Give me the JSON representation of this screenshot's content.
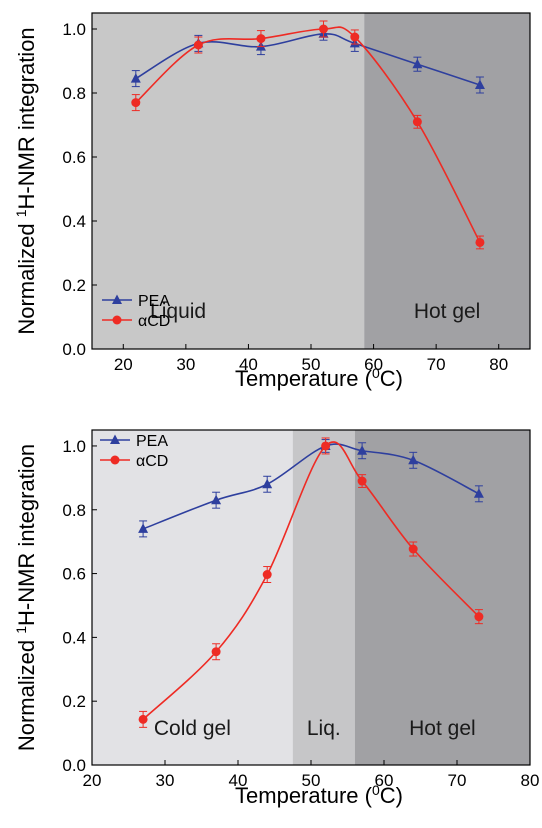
{
  "chart_data": [
    {
      "type": "line",
      "xlabel": "Temperature (",
      "xlabel_sup": "0",
      "xlabel_end": "C)",
      "ylabel": "Normalized ",
      "ylabel_sup": "1",
      "ylabel_end": "H-NMR integration",
      "xlim": [
        15,
        85
      ],
      "ylim": [
        0.0,
        1.05
      ],
      "xticks": [
        20,
        30,
        40,
        50,
        60,
        70,
        80
      ],
      "yticks": [
        0.0,
        0.2,
        0.4,
        0.6,
        0.8,
        1.0
      ],
      "legend_position": "bottom-left",
      "regions": [
        {
          "label": "Liquid",
          "x_start": 15,
          "x_end": 58.5,
          "color": "#c8c8c8"
        },
        {
          "label": "Hot gel",
          "x_start": 58.5,
          "x_end": 85,
          "color": "#a1a1a4"
        }
      ],
      "series": [
        {
          "name": "PEA",
          "color": "#2e3f9e",
          "marker": "triangle",
          "x": [
            22,
            32,
            42,
            52,
            57,
            67,
            77
          ],
          "y": [
            0.845,
            0.955,
            0.945,
            0.985,
            0.955,
            0.89,
            0.825
          ],
          "err": [
            0.025,
            0.025,
            0.025,
            0.02,
            0.025,
            0.022,
            0.025
          ]
        },
        {
          "name": "αCD",
          "color": "#ee2b24",
          "marker": "circle",
          "x": [
            22,
            32,
            42,
            52,
            57,
            67,
            77
          ],
          "y": [
            0.77,
            0.95,
            0.97,
            1.0,
            0.975,
            0.71,
            0.333
          ],
          "err": [
            0.025,
            0.025,
            0.025,
            0.025,
            0.022,
            0.02,
            0.02
          ]
        }
      ]
    },
    {
      "type": "line",
      "xlabel": "Temperature (",
      "xlabel_sup": "0",
      "xlabel_end": "C)",
      "ylabel": "Normalized ",
      "ylabel_sup": "1",
      "ylabel_end": "H-NMR integration",
      "xlim": [
        20,
        80
      ],
      "ylim": [
        0.0,
        1.05
      ],
      "xticks": [
        20,
        30,
        40,
        50,
        60,
        70,
        80
      ],
      "yticks": [
        0.0,
        0.2,
        0.4,
        0.6,
        0.8,
        1.0
      ],
      "legend_position": "top-left",
      "regions": [
        {
          "label": "Cold gel",
          "x_start": 20,
          "x_end": 47.5,
          "color": "#e2e2e5"
        },
        {
          "label": "Liq.",
          "x_start": 47.5,
          "x_end": 56,
          "color": "#c6c6c8"
        },
        {
          "label": "Hot gel",
          "x_start": 56,
          "x_end": 80,
          "color": "#a1a1a4"
        }
      ],
      "series": [
        {
          "name": "PEA",
          "color": "#2e3f9e",
          "marker": "triangle",
          "x": [
            27,
            37,
            44,
            52,
            57,
            64,
            73
          ],
          "y": [
            0.74,
            0.83,
            0.88,
            1.0,
            0.985,
            0.955,
            0.85
          ],
          "err": [
            0.025,
            0.025,
            0.025,
            0.02,
            0.025,
            0.025,
            0.025
          ]
        },
        {
          "name": "αCD",
          "color": "#ee2b24",
          "marker": "circle",
          "x": [
            27,
            37,
            44,
            52,
            57,
            64,
            73
          ],
          "y": [
            0.143,
            0.355,
            0.597,
            1.0,
            0.89,
            0.677,
            0.465
          ],
          "err": [
            0.025,
            0.025,
            0.025,
            0.025,
            0.02,
            0.022,
            0.022
          ]
        }
      ]
    }
  ]
}
